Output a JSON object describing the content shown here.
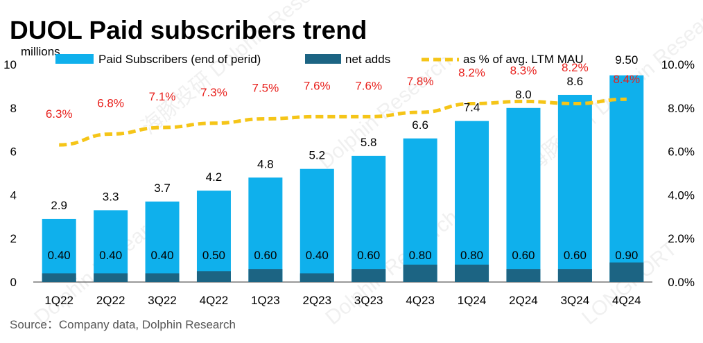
{
  "chart_data": {
    "type": "bar",
    "title": "DUOL Paid subscribers trend",
    "unit_label": "millions",
    "categories": [
      "1Q22",
      "2Q22",
      "3Q22",
      "4Q22",
      "1Q23",
      "2Q23",
      "3Q23",
      "4Q23",
      "1Q24",
      "2Q24",
      "3Q24",
      "4Q24"
    ],
    "series": [
      {
        "name": "Paid Subscribers (end of perid)",
        "kind": "bar",
        "axis": "left",
        "color": "#0fb0ec",
        "values": [
          2.9,
          3.3,
          3.7,
          4.2,
          4.8,
          5.2,
          5.8,
          6.6,
          7.4,
          8.0,
          8.6,
          9.5
        ],
        "labels": [
          "2.9",
          "3.3",
          "3.7",
          "4.2",
          "4.8",
          "5.2",
          "5.8",
          "6.6",
          "7.4",
          "8.0",
          "8.6",
          "9.50"
        ]
      },
      {
        "name": "net adds",
        "kind": "bar-overlay",
        "axis": "left",
        "color": "#1c6483",
        "values": [
          0.4,
          0.4,
          0.4,
          0.5,
          0.6,
          0.4,
          0.6,
          0.8,
          0.8,
          0.6,
          0.6,
          0.9
        ],
        "labels": [
          "0.40",
          "0.40",
          "0.40",
          "0.50",
          "0.60",
          "0.40",
          "0.60",
          "0.80",
          "0.80",
          "0.60",
          "0.60",
          "0.90"
        ]
      },
      {
        "name": "as % of avg. LTM MAU",
        "kind": "dashed-line",
        "axis": "right",
        "color": "#f5c518",
        "label_color": "#e8201c",
        "values": [
          6.3,
          6.8,
          7.1,
          7.3,
          7.5,
          7.6,
          7.6,
          7.8,
          8.2,
          8.3,
          8.2,
          8.4
        ],
        "labels": [
          "6.3%",
          "6.8%",
          "7.1%",
          "7.3%",
          "7.5%",
          "7.6%",
          "7.6%",
          "7.8%",
          "8.2%",
          "8.3%",
          "8.2%",
          "8.4%"
        ]
      }
    ],
    "y_left": {
      "min": 0,
      "max": 10,
      "ticks": [
        "0",
        "2",
        "4",
        "6",
        "8",
        "10"
      ]
    },
    "y_right": {
      "min": 0,
      "max": 10,
      "ticks": [
        "0.0%",
        "2.0%",
        "4.0%",
        "6.0%",
        "8.0%",
        "10.0%"
      ]
    },
    "legend_position": "top",
    "grid": false,
    "source": "Source：Company data, Dolphin Research",
    "watermarks": [
      "海豚投研",
      "Dolphin Research",
      "LONGPORT"
    ]
  }
}
